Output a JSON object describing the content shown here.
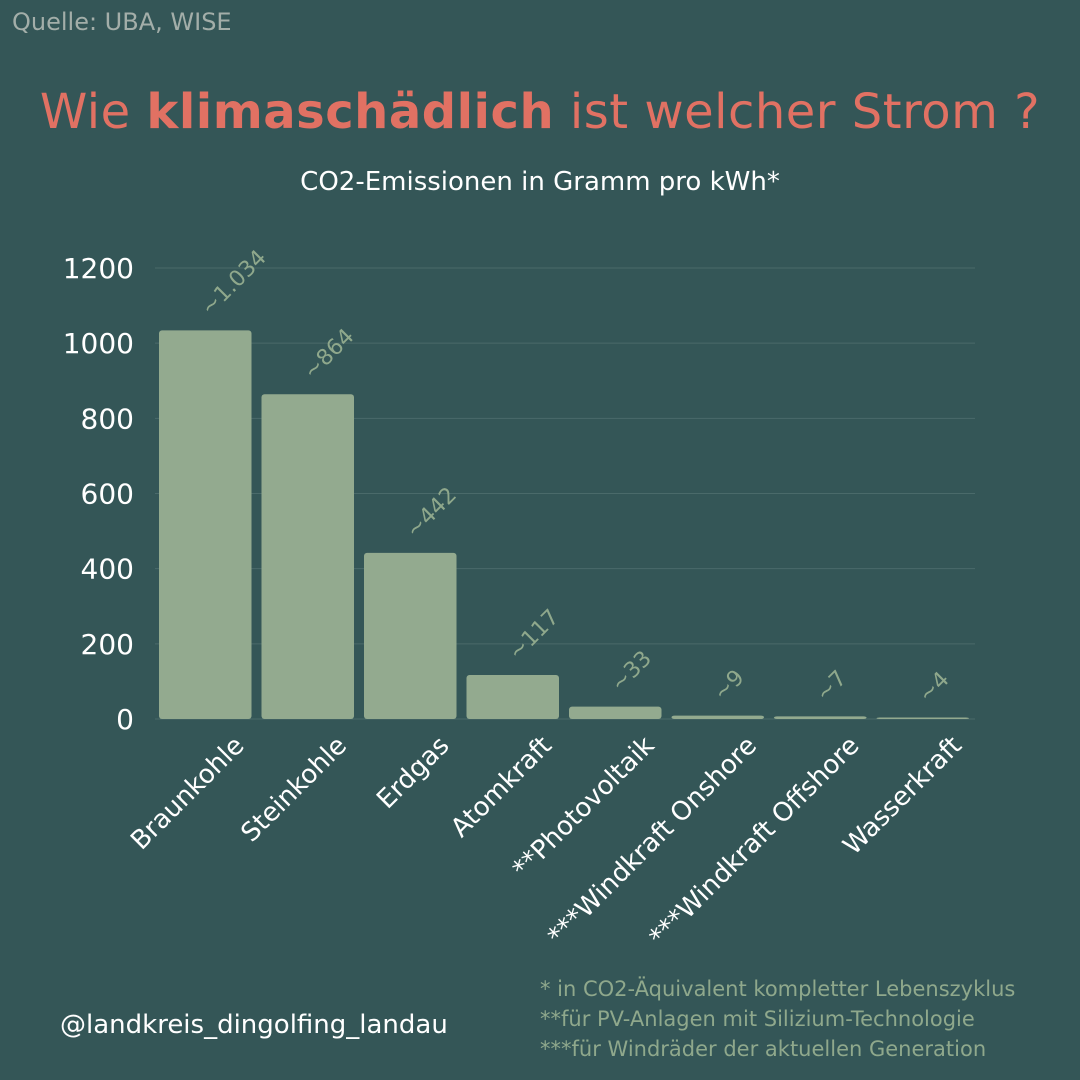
{
  "source": "Quelle: UBA, WISE",
  "title": {
    "prefix": "Wie ",
    "bold": "klimaschädlich",
    "suffix": " ist welcher Strom ?"
  },
  "subtitle": "CO2-Emissionen in Gramm pro kWh*",
  "handle": "@landkreis_dingolfing_landau",
  "footnotes": [
    "* in CO2-Äquivalent kompletter Lebenszyklus",
    "**für PV-Anlagen mit Silizium-Technologie",
    "***für Windräder der aktuellen Generation"
  ],
  "colors": {
    "background": "#345657",
    "bar": "#93aa8f",
    "title": "#e17163",
    "label": "#8fa88c",
    "grid": "#4a6a6a"
  },
  "chart_data": {
    "type": "bar",
    "categories": [
      "Braunkohle",
      "Steinkohle",
      "Erdgas",
      "Atomkraft",
      "**Photovoltaik",
      "***Windkraft Onshore",
      "***Windkraft Offshore",
      "Wasserkraft"
    ],
    "values": [
      1034,
      864,
      442,
      117,
      33,
      9,
      7,
      4
    ],
    "data_labels": [
      "~1.034",
      "~864",
      "~442",
      "~117",
      "~33",
      "~9",
      "~7",
      "~4"
    ],
    "y_ticks": [
      "0",
      "200",
      "400",
      "600",
      "800",
      "1000",
      "1200"
    ],
    "ylim": [
      0,
      1200
    ],
    "grid": true,
    "title": "Wie klimaschädlich ist welcher Strom ?",
    "subtitle": "CO2-Emissionen in Gramm pro kWh*"
  }
}
